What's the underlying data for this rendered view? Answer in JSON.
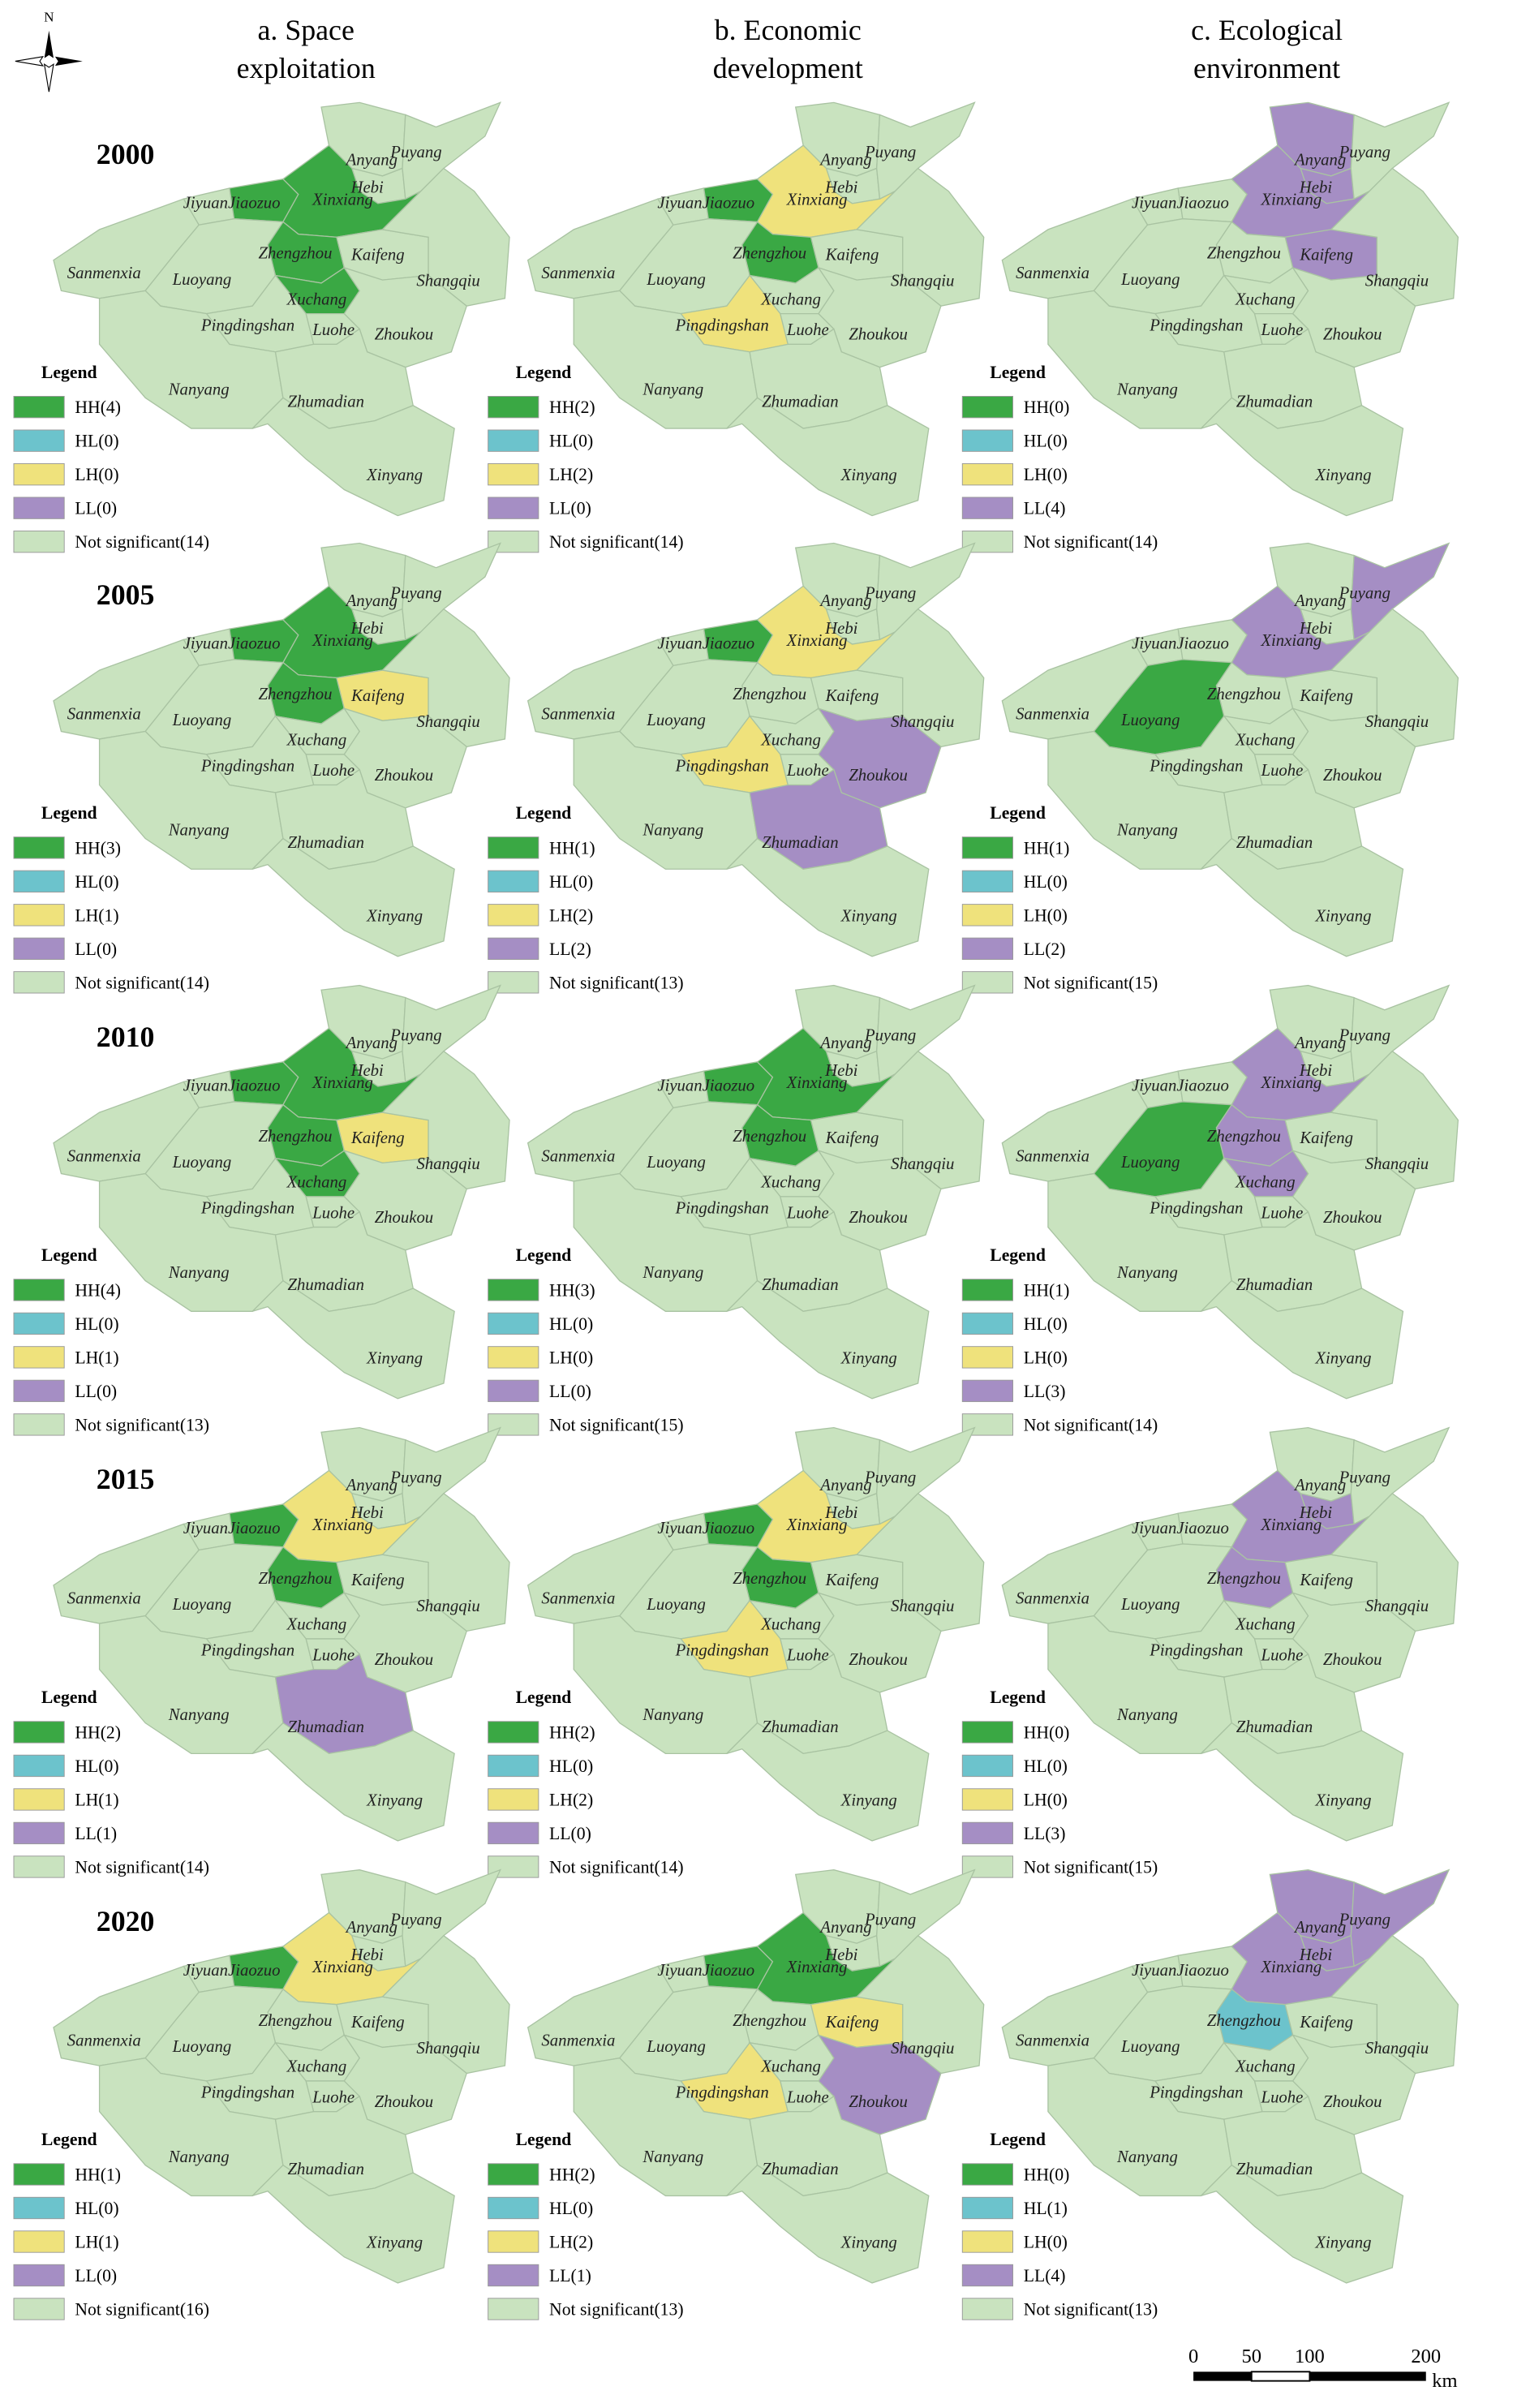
{
  "columns": [
    {
      "lines": [
        "a. Space",
        "exploitation"
      ]
    },
    {
      "lines": [
        "b. Economic",
        "development"
      ]
    },
    {
      "lines": [
        "c. Ecological",
        "environment"
      ]
    }
  ],
  "north": "N",
  "cities": [
    "Anyang",
    "Hebi",
    "Puyang",
    "Jiyuan",
    "Jiaozuo",
    "Xinxiang",
    "Zhengzhou",
    "Kaifeng",
    "Shangqiu",
    "Sanmenxia",
    "Luoyang",
    "Xuchang",
    "Pingdingshan",
    "Luohe",
    "Zhoukou",
    "Nanyang",
    "Zhumadian",
    "Xinyang"
  ],
  "rows": [
    {
      "year": "2000",
      "panels": [
        {
          "legend_title": "Legend",
          "legend": [
            {
              "label": "HH(4)",
              "color": "#3aa844"
            },
            {
              "label": "HL(0)",
              "color": "#6cc3cc"
            },
            {
              "label": "LH(0)",
              "color": "#efe27c"
            },
            {
              "label": "LL(0)",
              "color": "#a58ec4"
            },
            {
              "label": "Not significant(14)",
              "color": "#c9e3bf"
            }
          ],
          "region_colors": [
            "#c9e3bf",
            "#c9e3bf",
            "#c9e3bf",
            "#c9e3bf",
            "#3aa844",
            "#3aa844",
            "#3aa844",
            "#c9e3bf",
            "#c9e3bf",
            "#c9e3bf",
            "#c9e3bf",
            "#3aa844",
            "#c9e3bf",
            "#c9e3bf",
            "#c9e3bf",
            "#c9e3bf",
            "#c9e3bf",
            "#c9e3bf"
          ]
        },
        {
          "legend_title": "Legend",
          "legend": [
            {
              "label": "HH(2)",
              "color": "#3aa844"
            },
            {
              "label": "HL(0)",
              "color": "#6cc3cc"
            },
            {
              "label": "LH(2)",
              "color": "#efe27c"
            },
            {
              "label": "LL(0)",
              "color": "#a58ec4"
            },
            {
              "label": "Not significant(14)",
              "color": "#c9e3bf"
            }
          ],
          "region_colors": [
            "#c9e3bf",
            "#c9e3bf",
            "#c9e3bf",
            "#c9e3bf",
            "#3aa844",
            "#efe27c",
            "#3aa844",
            "#c9e3bf",
            "#c9e3bf",
            "#c9e3bf",
            "#c9e3bf",
            "#c9e3bf",
            "#efe27c",
            "#c9e3bf",
            "#c9e3bf",
            "#c9e3bf",
            "#c9e3bf",
            "#c9e3bf"
          ]
        },
        {
          "legend_title": "Legend",
          "legend": [
            {
              "label": "HH(0)",
              "color": "#3aa844"
            },
            {
              "label": "HL(0)",
              "color": "#6cc3cc"
            },
            {
              "label": "LH(0)",
              "color": "#efe27c"
            },
            {
              "label": "LL(4)",
              "color": "#a58ec4"
            },
            {
              "label": "Not significant(14)",
              "color": "#c9e3bf"
            }
          ],
          "region_colors": [
            "#a58ec4",
            "#a58ec4",
            "#c9e3bf",
            "#c9e3bf",
            "#c9e3bf",
            "#a58ec4",
            "#c9e3bf",
            "#a58ec4",
            "#c9e3bf",
            "#c9e3bf",
            "#c9e3bf",
            "#c9e3bf",
            "#c9e3bf",
            "#c9e3bf",
            "#c9e3bf",
            "#c9e3bf",
            "#c9e3bf",
            "#c9e3bf"
          ]
        }
      ]
    },
    {
      "year": "2005",
      "panels": [
        {
          "legend_title": "Legend",
          "legend": [
            {
              "label": "HH(3)",
              "color": "#3aa844"
            },
            {
              "label": "HL(0)",
              "color": "#6cc3cc"
            },
            {
              "label": "LH(1)",
              "color": "#efe27c"
            },
            {
              "label": "LL(0)",
              "color": "#a58ec4"
            },
            {
              "label": "Not significant(14)",
              "color": "#c9e3bf"
            }
          ],
          "region_colors": [
            "#c9e3bf",
            "#c9e3bf",
            "#c9e3bf",
            "#c9e3bf",
            "#3aa844",
            "#3aa844",
            "#3aa844",
            "#efe27c",
            "#c9e3bf",
            "#c9e3bf",
            "#c9e3bf",
            "#c9e3bf",
            "#c9e3bf",
            "#c9e3bf",
            "#c9e3bf",
            "#c9e3bf",
            "#c9e3bf",
            "#c9e3bf"
          ]
        },
        {
          "legend_title": "Legend",
          "legend": [
            {
              "label": "HH(1)",
              "color": "#3aa844"
            },
            {
              "label": "HL(0)",
              "color": "#6cc3cc"
            },
            {
              "label": "LH(2)",
              "color": "#efe27c"
            },
            {
              "label": "LL(2)",
              "color": "#a58ec4"
            },
            {
              "label": "Not significant(13)",
              "color": "#c9e3bf"
            }
          ],
          "region_colors": [
            "#c9e3bf",
            "#c9e3bf",
            "#c9e3bf",
            "#c9e3bf",
            "#3aa844",
            "#efe27c",
            "#c9e3bf",
            "#c9e3bf",
            "#c9e3bf",
            "#c9e3bf",
            "#c9e3bf",
            "#c9e3bf",
            "#efe27c",
            "#c9e3bf",
            "#a58ec4",
            "#c9e3bf",
            "#a58ec4",
            "#c9e3bf"
          ]
        },
        {
          "legend_title": "Legend",
          "legend": [
            {
              "label": "HH(1)",
              "color": "#3aa844"
            },
            {
              "label": "HL(0)",
              "color": "#6cc3cc"
            },
            {
              "label": "LH(0)",
              "color": "#efe27c"
            },
            {
              "label": "LL(2)",
              "color": "#a58ec4"
            },
            {
              "label": "Not significant(15)",
              "color": "#c9e3bf"
            }
          ],
          "region_colors": [
            "#c9e3bf",
            "#c9e3bf",
            "#a58ec4",
            "#c9e3bf",
            "#c9e3bf",
            "#a58ec4",
            "#c9e3bf",
            "#c9e3bf",
            "#c9e3bf",
            "#c9e3bf",
            "#3aa844",
            "#c9e3bf",
            "#c9e3bf",
            "#c9e3bf",
            "#c9e3bf",
            "#c9e3bf",
            "#c9e3bf",
            "#c9e3bf"
          ]
        }
      ]
    },
    {
      "year": "2010",
      "panels": [
        {
          "legend_title": "Legend",
          "legend": [
            {
              "label": "HH(4)",
              "color": "#3aa844"
            },
            {
              "label": "HL(0)",
              "color": "#6cc3cc"
            },
            {
              "label": "LH(1)",
              "color": "#efe27c"
            },
            {
              "label": "LL(0)",
              "color": "#a58ec4"
            },
            {
              "label": "Not significant(13)",
              "color": "#c9e3bf"
            }
          ],
          "region_colors": [
            "#c9e3bf",
            "#c9e3bf",
            "#c9e3bf",
            "#c9e3bf",
            "#3aa844",
            "#3aa844",
            "#3aa844",
            "#efe27c",
            "#c9e3bf",
            "#c9e3bf",
            "#c9e3bf",
            "#3aa844",
            "#c9e3bf",
            "#c9e3bf",
            "#c9e3bf",
            "#c9e3bf",
            "#c9e3bf",
            "#c9e3bf"
          ]
        },
        {
          "legend_title": "Legend",
          "legend": [
            {
              "label": "HH(3)",
              "color": "#3aa844"
            },
            {
              "label": "HL(0)",
              "color": "#6cc3cc"
            },
            {
              "label": "LH(0)",
              "color": "#efe27c"
            },
            {
              "label": "LL(0)",
              "color": "#a58ec4"
            },
            {
              "label": "Not significant(15)",
              "color": "#c9e3bf"
            }
          ],
          "region_colors": [
            "#c9e3bf",
            "#c9e3bf",
            "#c9e3bf",
            "#c9e3bf",
            "#3aa844",
            "#3aa844",
            "#3aa844",
            "#c9e3bf",
            "#c9e3bf",
            "#c9e3bf",
            "#c9e3bf",
            "#c9e3bf",
            "#c9e3bf",
            "#c9e3bf",
            "#c9e3bf",
            "#c9e3bf",
            "#c9e3bf",
            "#c9e3bf"
          ]
        },
        {
          "legend_title": "Legend",
          "legend": [
            {
              "label": "HH(1)",
              "color": "#3aa844"
            },
            {
              "label": "HL(0)",
              "color": "#6cc3cc"
            },
            {
              "label": "LH(0)",
              "color": "#efe27c"
            },
            {
              "label": "LL(3)",
              "color": "#a58ec4"
            },
            {
              "label": "Not significant(14)",
              "color": "#c9e3bf"
            }
          ],
          "region_colors": [
            "#c9e3bf",
            "#c9e3bf",
            "#c9e3bf",
            "#c9e3bf",
            "#c9e3bf",
            "#a58ec4",
            "#a58ec4",
            "#c9e3bf",
            "#c9e3bf",
            "#c9e3bf",
            "#3aa844",
            "#a58ec4",
            "#c9e3bf",
            "#c9e3bf",
            "#c9e3bf",
            "#c9e3bf",
            "#c9e3bf",
            "#c9e3bf"
          ]
        }
      ]
    },
    {
      "year": "2015",
      "panels": [
        {
          "legend_title": "Legend",
          "legend": [
            {
              "label": "HH(2)",
              "color": "#3aa844"
            },
            {
              "label": "HL(0)",
              "color": "#6cc3cc"
            },
            {
              "label": "LH(1)",
              "color": "#efe27c"
            },
            {
              "label": "LL(1)",
              "color": "#a58ec4"
            },
            {
              "label": "Not significant(14)",
              "color": "#c9e3bf"
            }
          ],
          "region_colors": [
            "#c9e3bf",
            "#c9e3bf",
            "#c9e3bf",
            "#c9e3bf",
            "#3aa844",
            "#efe27c",
            "#3aa844",
            "#c9e3bf",
            "#c9e3bf",
            "#c9e3bf",
            "#c9e3bf",
            "#c9e3bf",
            "#c9e3bf",
            "#c9e3bf",
            "#c9e3bf",
            "#c9e3bf",
            "#a58ec4",
            "#c9e3bf"
          ]
        },
        {
          "legend_title": "Legend",
          "legend": [
            {
              "label": "HH(2)",
              "color": "#3aa844"
            },
            {
              "label": "HL(0)",
              "color": "#6cc3cc"
            },
            {
              "label": "LH(2)",
              "color": "#efe27c"
            },
            {
              "label": "LL(0)",
              "color": "#a58ec4"
            },
            {
              "label": "Not significant(14)",
              "color": "#c9e3bf"
            }
          ],
          "region_colors": [
            "#c9e3bf",
            "#c9e3bf",
            "#c9e3bf",
            "#c9e3bf",
            "#3aa844",
            "#efe27c",
            "#3aa844",
            "#c9e3bf",
            "#c9e3bf",
            "#c9e3bf",
            "#c9e3bf",
            "#c9e3bf",
            "#efe27c",
            "#c9e3bf",
            "#c9e3bf",
            "#c9e3bf",
            "#c9e3bf",
            "#c9e3bf"
          ]
        },
        {
          "legend_title": "Legend",
          "legend": [
            {
              "label": "HH(0)",
              "color": "#3aa844"
            },
            {
              "label": "HL(0)",
              "color": "#6cc3cc"
            },
            {
              "label": "LH(0)",
              "color": "#efe27c"
            },
            {
              "label": "LL(3)",
              "color": "#a58ec4"
            },
            {
              "label": "Not significant(15)",
              "color": "#c9e3bf"
            }
          ],
          "region_colors": [
            "#c9e3bf",
            "#a58ec4",
            "#c9e3bf",
            "#c9e3bf",
            "#c9e3bf",
            "#a58ec4",
            "#a58ec4",
            "#c9e3bf",
            "#c9e3bf",
            "#c9e3bf",
            "#c9e3bf",
            "#c9e3bf",
            "#c9e3bf",
            "#c9e3bf",
            "#c9e3bf",
            "#c9e3bf",
            "#c9e3bf",
            "#c9e3bf"
          ]
        }
      ]
    },
    {
      "year": "2020",
      "panels": [
        {
          "legend_title": "Legend",
          "legend": [
            {
              "label": "HH(1)",
              "color": "#3aa844"
            },
            {
              "label": "HL(0)",
              "color": "#6cc3cc"
            },
            {
              "label": "LH(1)",
              "color": "#efe27c"
            },
            {
              "label": "LL(0)",
              "color": "#a58ec4"
            },
            {
              "label": "Not significant(16)",
              "color": "#c9e3bf"
            }
          ],
          "region_colors": [
            "#c9e3bf",
            "#c9e3bf",
            "#c9e3bf",
            "#c9e3bf",
            "#3aa844",
            "#efe27c",
            "#c9e3bf",
            "#c9e3bf",
            "#c9e3bf",
            "#c9e3bf",
            "#c9e3bf",
            "#c9e3bf",
            "#c9e3bf",
            "#c9e3bf",
            "#c9e3bf",
            "#c9e3bf",
            "#c9e3bf",
            "#c9e3bf"
          ]
        },
        {
          "legend_title": "Legend",
          "legend": [
            {
              "label": "HH(2)",
              "color": "#3aa844"
            },
            {
              "label": "HL(0)",
              "color": "#6cc3cc"
            },
            {
              "label": "LH(2)",
              "color": "#efe27c"
            },
            {
              "label": "LL(1)",
              "color": "#a58ec4"
            },
            {
              "label": "Not significant(13)",
              "color": "#c9e3bf"
            }
          ],
          "region_colors": [
            "#c9e3bf",
            "#c9e3bf",
            "#c9e3bf",
            "#c9e3bf",
            "#3aa844",
            "#3aa844",
            "#c9e3bf",
            "#efe27c",
            "#c9e3bf",
            "#c9e3bf",
            "#c9e3bf",
            "#c9e3bf",
            "#efe27c",
            "#c9e3bf",
            "#a58ec4",
            "#c9e3bf",
            "#c9e3bf",
            "#c9e3bf"
          ]
        },
        {
          "legend_title": "Legend",
          "legend": [
            {
              "label": "HH(0)",
              "color": "#3aa844"
            },
            {
              "label": "HL(1)",
              "color": "#6cc3cc"
            },
            {
              "label": "LH(0)",
              "color": "#efe27c"
            },
            {
              "label": "LL(4)",
              "color": "#a58ec4"
            },
            {
              "label": "Not significant(13)",
              "color": "#c9e3bf"
            }
          ],
          "region_colors": [
            "#a58ec4",
            "#a58ec4",
            "#a58ec4",
            "#c9e3bf",
            "#c9e3bf",
            "#a58ec4",
            "#6cc3cc",
            "#c9e3bf",
            "#c9e3bf",
            "#c9e3bf",
            "#c9e3bf",
            "#c9e3bf",
            "#c9e3bf",
            "#c9e3bf",
            "#c9e3bf",
            "#c9e3bf",
            "#c9e3bf",
            "#c9e3bf"
          ]
        }
      ]
    }
  ],
  "scale_bar": {
    "labels": [
      "0",
      "50",
      "100",
      "200"
    ],
    "unit": "km"
  }
}
